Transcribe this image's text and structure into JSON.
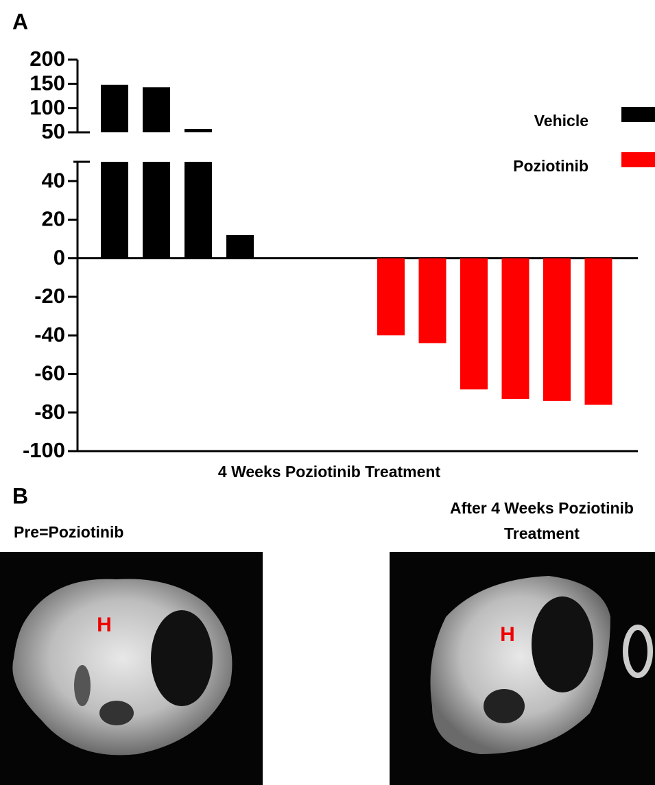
{
  "panel_labels": [
    "A",
    "B"
  ],
  "chart_data": {
    "type": "bar",
    "xlabel": "4 Weeks Poziotinib Treatment",
    "categories": [
      null,
      null,
      null,
      null,
      null,
      null,
      null,
      null,
      null,
      null
    ],
    "series": [
      {
        "name": "Vehicle",
        "color": "#000000",
        "values": [
          148,
          143,
          57,
          12,
          null,
          null,
          null,
          null,
          null,
          null
        ]
      },
      {
        "name": "Poziotinib",
        "color": "#ff0000",
        "values": [
          null,
          null,
          null,
          null,
          -40,
          -44,
          -68,
          -73,
          -74,
          -76
        ]
      }
    ],
    "ylim": [
      -100,
      200
    ],
    "y_segments": [
      {
        "ylim": [
          -100,
          50
        ],
        "yticks": [
          -100,
          -80,
          -60,
          -40,
          -20,
          0,
          20,
          40
        ]
      },
      {
        "ylim": [
          50,
          200
        ],
        "yticks": [
          50,
          100,
          150,
          200
        ]
      }
    ],
    "legend": "right"
  },
  "panel_b": {
    "left_title": "Pre=Poziotinib",
    "right_title": [
      "After 4 Weeks Poziotinib",
      "Treatment"
    ],
    "images": [
      {
        "marker": "H"
      },
      {
        "marker": "H"
      }
    ]
  }
}
